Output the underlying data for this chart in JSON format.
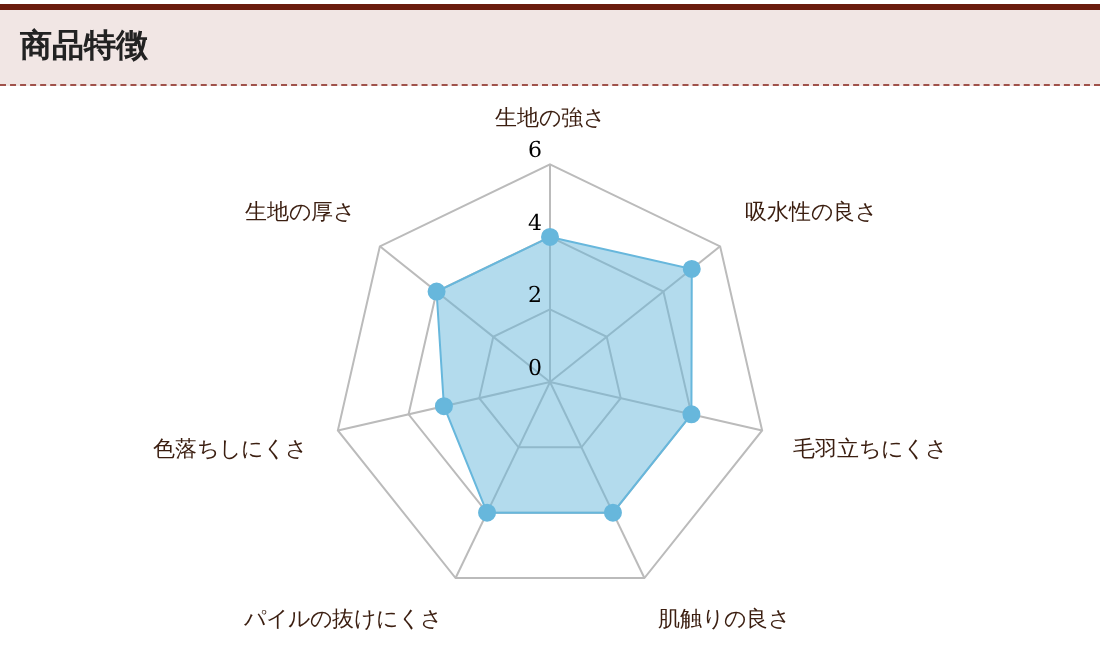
{
  "chart_data": {
    "type": "radar",
    "title": "商品特徴",
    "categories": [
      "生地の強さ",
      "吸水性の良さ",
      "毛羽立ちにくさ",
      "肌触りの良さ",
      "パイルの抜けにくさ",
      "色落ちしにくさ",
      "生地の厚さ"
    ],
    "series": [
      {
        "color": "#67b7dc",
        "values": [
          4,
          5,
          4,
          4,
          4,
          3,
          4
        ]
      }
    ],
    "ylim": [
      0,
      6
    ],
    "yticks": [
      0,
      2,
      4,
      6
    ],
    "grid": true,
    "marker": "circle",
    "legend": false
  }
}
